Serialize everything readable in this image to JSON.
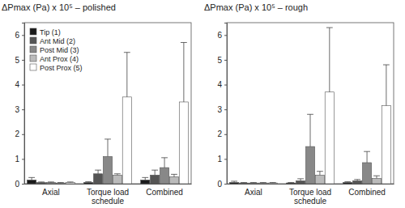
{
  "chart_data": [
    {
      "type": "bar",
      "title": "ΔPmax (Pa) x 10⁵ – polished",
      "categories": [
        "Axial",
        "Torque load schedule",
        "Combined"
      ],
      "ylim": [
        0,
        6.5
      ],
      "yticks": [
        0,
        1,
        2,
        3,
        4,
        5,
        6
      ],
      "legend": "upper left",
      "series": [
        {
          "name": "Tip (1)",
          "color": "#1a1a1a",
          "values": [
            0.15,
            0.05,
            0.15
          ],
          "errors": [
            0.1,
            0.03,
            0.1
          ]
        },
        {
          "name": "Ant Mid (2)",
          "color": "#555555",
          "values": [
            0.05,
            0.4,
            0.35
          ],
          "errors": [
            0.02,
            0.15,
            0.2
          ]
        },
        {
          "name": "Post Mid (3)",
          "color": "#888888",
          "values": [
            0.05,
            1.1,
            0.65
          ],
          "errors": [
            0.02,
            0.7,
            0.4
          ]
        },
        {
          "name": "Ant Prox (4)",
          "color": "#bbbbbb",
          "values": [
            0.03,
            0.35,
            0.28
          ],
          "errors": [
            0.02,
            0.05,
            0.1
          ]
        },
        {
          "name": "Post Prox (5)",
          "color": "#ffffff",
          "values": [
            0.05,
            3.5,
            3.3
          ],
          "errors": [
            0.02,
            1.8,
            2.4
          ]
        }
      ]
    },
    {
      "type": "bar",
      "title": "ΔPmax (Pa) x 10⁵ – rough",
      "categories": [
        "Axial",
        "Torque load schedule",
        "Combined"
      ],
      "ylim": [
        0,
        6.5
      ],
      "yticks": [
        0,
        1,
        2,
        3,
        4,
        5,
        6
      ],
      "series": [
        {
          "color": "#1a1a1a",
          "values": [
            0.05,
            0.03,
            0.05
          ],
          "errors": [
            0.05,
            0.02,
            0.03
          ]
        },
        {
          "color": "#555555",
          "values": [
            0.03,
            0.12,
            0.12
          ],
          "errors": [
            0.02,
            0.08,
            0.05
          ]
        },
        {
          "color": "#888888",
          "values": [
            0.03,
            1.5,
            0.85
          ],
          "errors": [
            0.02,
            1.3,
            0.45
          ]
        },
        {
          "color": "#bbbbbb",
          "values": [
            0.03,
            0.35,
            0.22
          ],
          "errors": [
            0.02,
            0.15,
            0.1
          ]
        },
        {
          "color": "#ffffff",
          "values": [
            0.03,
            3.7,
            3.15
          ],
          "errors": [
            0.02,
            2.6,
            1.65
          ]
        }
      ]
    }
  ]
}
